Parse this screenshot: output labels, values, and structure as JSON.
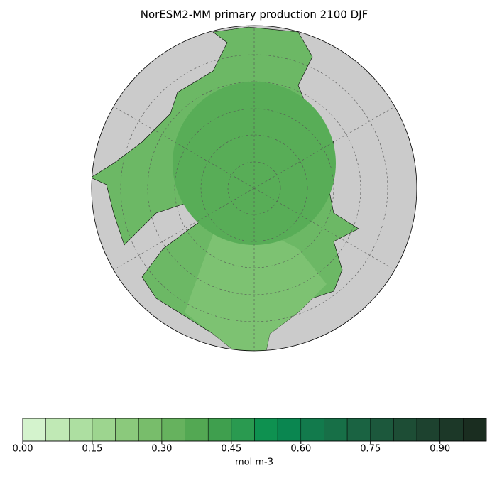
{
  "title": "NorESM2-MM primary production 2100 DJF",
  "colorbar": {
    "label": "mol m-3",
    "levels": [
      0,
      0.05,
      0.1,
      0.15,
      0.2,
      0.25,
      0.3,
      0.35,
      0.4,
      0.45,
      0.5,
      0.55,
      0.6,
      0.65,
      0.7,
      0.75,
      0.8,
      0.85,
      0.9,
      0.95,
      1.0
    ],
    "colors": [
      "#d4f3cd",
      "#c0e9b5",
      "#addfa1",
      "#9dd58f",
      "#8bc97c",
      "#78bd6b",
      "#66b25e",
      "#53a853",
      "#3f9f4e",
      "#2a9a50",
      "#0e9150",
      "#0a8650",
      "#127a4c",
      "#176f47",
      "#1a6342",
      "#1c583c",
      "#1d4d35",
      "#1d422f",
      "#1c3828",
      "#1a2d20"
    ],
    "xlim": [
      0,
      1.0
    ],
    "xticks": [
      {
        "value": 0,
        "label": "0.00"
      },
      {
        "value": 0.15,
        "label": "0.15"
      },
      {
        "value": 0.3,
        "label": "0.30"
      },
      {
        "value": 0.45,
        "label": "0.45"
      },
      {
        "value": 0.6,
        "label": "0.60"
      },
      {
        "value": 0.75,
        "label": "0.75"
      },
      {
        "value": 0.9,
        "label": "0.90"
      }
    ]
  }
}
